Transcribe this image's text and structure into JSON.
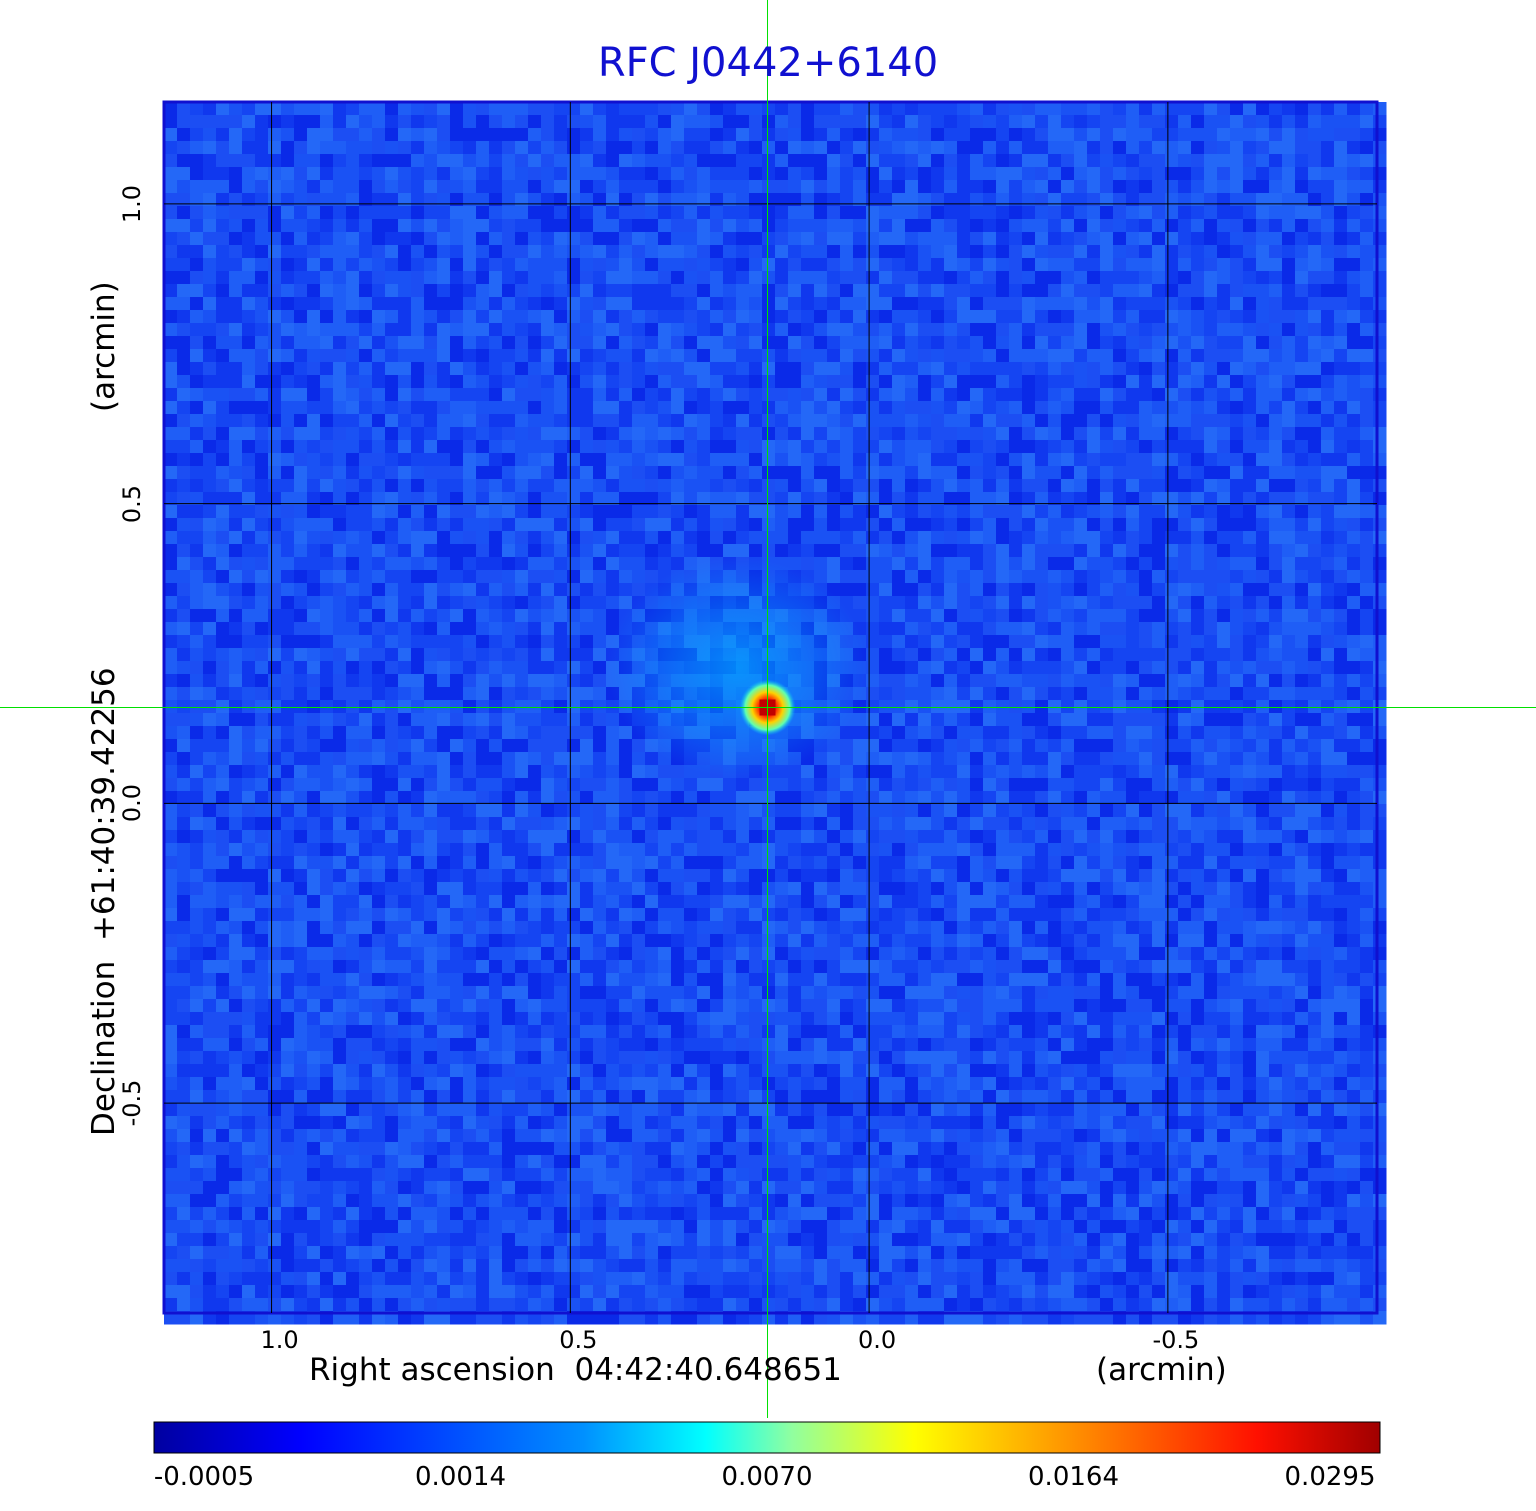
{
  "chart_data": {
    "type": "heatmap",
    "title": "RFC J0442+6140",
    "xlabel": "Right ascension  04:42:40.648651",
    "xunit": "(arcmin)",
    "ylabel": "Declination  +61:40:39.42256",
    "yunit": "(arcmin)",
    "xlim": [
      1.18,
      -0.85
    ],
    "ylim": [
      -0.85,
      1.17
    ],
    "x_ticks": [
      "1.0",
      "0.5",
      "0.0",
      "-0.5"
    ],
    "x_tick_values": [
      1.0,
      0.5,
      0.0,
      -0.5
    ],
    "y_ticks": [
      "1.0",
      "0.5",
      "0.0",
      "-0.5"
    ],
    "y_tick_values": [
      1.0,
      0.5,
      0.0,
      -0.5
    ],
    "grid": true,
    "crosshair": {
      "x": 0.17,
      "y": 0.16,
      "color": "#00e000"
    },
    "source": {
      "x": 0.17,
      "y": 0.16,
      "peak": 0.0295
    },
    "colorbar": {
      "colormap": "jet",
      "position": "bottom",
      "ticks": [
        "-0.0005",
        "0.0014",
        "0.0070",
        "0.0164",
        "0.0295"
      ]
    }
  }
}
